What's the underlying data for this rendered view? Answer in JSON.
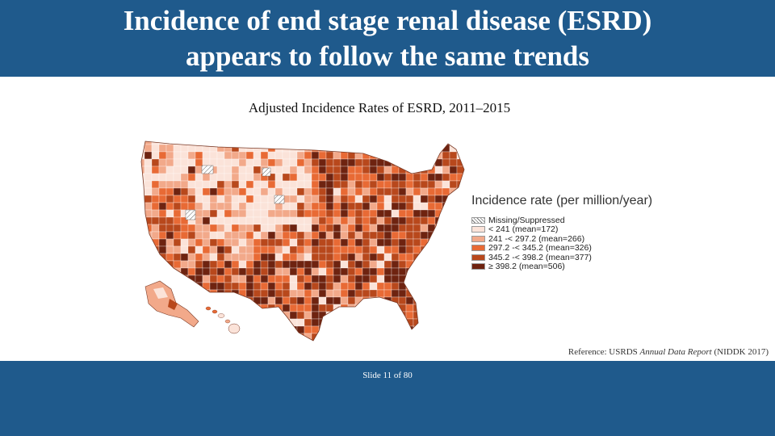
{
  "slide": {
    "title_line1": "Incidence of end stage renal disease (ESRD)",
    "title_line2": "appears to follow the same trends",
    "subtitle": "Adjusted Incidence Rates of ESRD, 2011–2015",
    "reference_prefix": "Reference: USRDS ",
    "reference_italic": "Annual Data Report",
    "reference_suffix": " (NIDDK 2017)",
    "slide_number": "Slide 11 of 80"
  },
  "legend": {
    "title": "Incidence rate (per million/year)",
    "items": [
      {
        "label": "Missing/Suppressed",
        "color": "#ffffff",
        "hatch": true
      },
      {
        "label": "< 241 (mean=172)",
        "color": "#fbe3d9"
      },
      {
        "label": "241 -< 297.2 (mean=266)",
        "color": "#f2a98a"
      },
      {
        "label": "297.2 -< 345.2 (mean=326)",
        "color": "#e86a35"
      },
      {
        "label": "345.2 -< 398.2 (mean=377)",
        "color": "#b8481c"
      },
      {
        "label": "≥  398.2  (mean=506)",
        "color": "#6e2310"
      }
    ]
  },
  "colors": {
    "header_bg": "#1f5a8c",
    "class1": "#fbe3d9",
    "class2": "#f2a98a",
    "class3": "#e86a35",
    "class4": "#b8481c",
    "class5": "#6e2310"
  }
}
